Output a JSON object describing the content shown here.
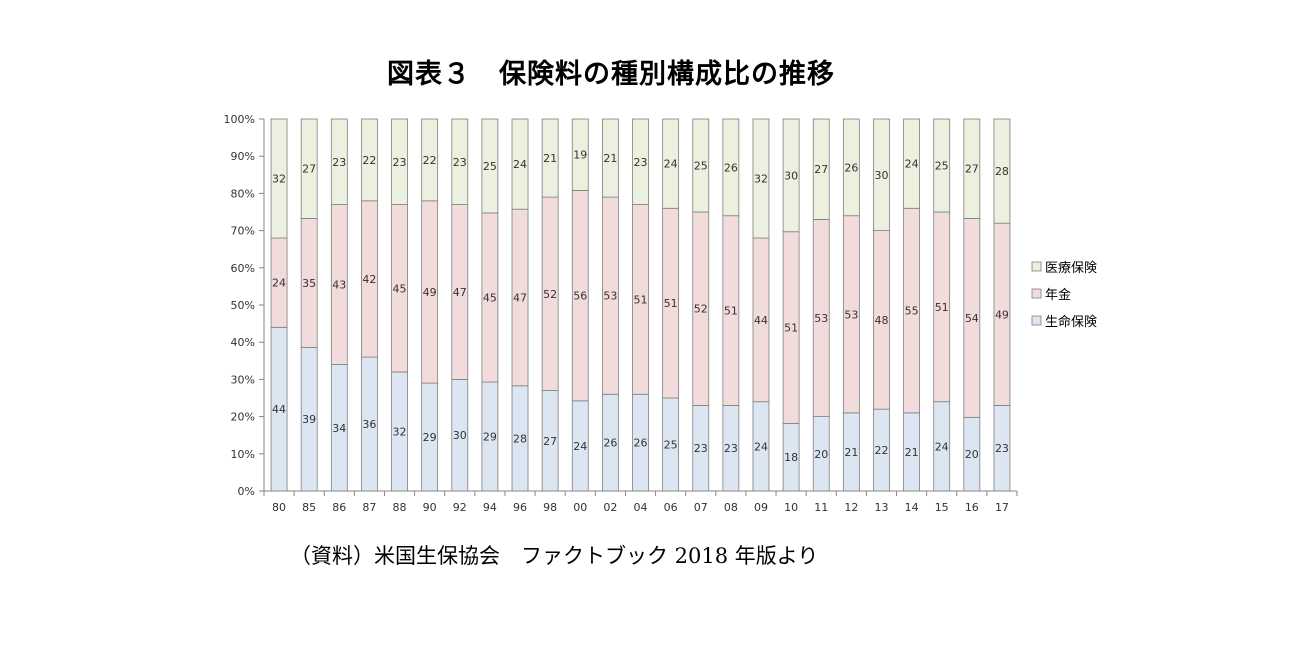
{
  "title": "図表３　保険料の種別構成比の推移",
  "source": "（資料）米国生保協会　ファクトブック 2018 年版より",
  "chart_data": {
    "type": "bar",
    "stacked": true,
    "percent_stacked": true,
    "categories": [
      "80",
      "85",
      "86",
      "87",
      "88",
      "90",
      "92",
      "94",
      "96",
      "98",
      "00",
      "02",
      "04",
      "06",
      "07",
      "08",
      "09",
      "10",
      "11",
      "12",
      "13",
      "14",
      "15",
      "16",
      "17"
    ],
    "series": [
      {
        "name": "生命保険",
        "color": "#dce6f2",
        "values": [
          44,
          39,
          34,
          36,
          32,
          29,
          30,
          29,
          28,
          27,
          24,
          26,
          26,
          25,
          23,
          23,
          24,
          18,
          20,
          21,
          22,
          21,
          24,
          20,
          23
        ]
      },
      {
        "name": "年金",
        "color": "#f2dcdb",
        "values": [
          24,
          35,
          43,
          42,
          45,
          49,
          47,
          45,
          47,
          52,
          56,
          53,
          51,
          51,
          52,
          51,
          44,
          51,
          53,
          53,
          48,
          55,
          51,
          54,
          49
        ]
      },
      {
        "name": "医療保険",
        "color": "#ebf1de",
        "values": [
          32,
          27,
          23,
          22,
          23,
          22,
          23,
          25,
          24,
          21,
          19,
          21,
          23,
          24,
          25,
          26,
          32,
          30,
          27,
          26,
          30,
          24,
          25,
          27,
          28
        ]
      }
    ],
    "y_ticks": [
      "0%",
      "10%",
      "20%",
      "30%",
      "40%",
      "50%",
      "60%",
      "70%",
      "80%",
      "90%",
      "100%"
    ],
    "ylim": [
      0,
      100
    ],
    "legend_position": "right",
    "grid": false
  }
}
